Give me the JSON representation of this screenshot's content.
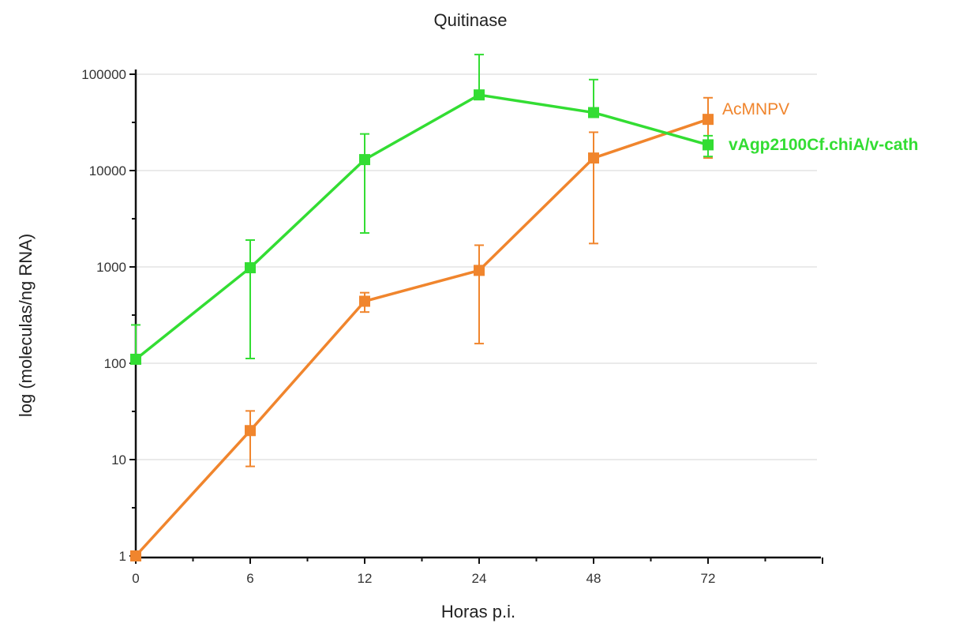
{
  "chart_data": {
    "type": "line",
    "title": "Quitinase",
    "xlabel": "Horas p.i.",
    "ylabel": "log (moleculas/ng RNA)",
    "y_scale": "log",
    "ylim": [
      1,
      100000
    ],
    "x": [
      "0",
      "6",
      "12",
      "24",
      "48",
      "72"
    ],
    "y_ticks": [
      "1",
      "10",
      "100",
      "1000",
      "10000",
      "100000"
    ],
    "grid": true,
    "legend": "right",
    "series": [
      {
        "name": "AcMNPV",
        "color": "#F0852D",
        "values": [
          1,
          20,
          440,
          920,
          13500,
          34000
        ],
        "err_low": [
          1,
          8.5,
          340,
          160,
          1750,
          13500
        ],
        "err_high": [
          1,
          32,
          540,
          1680,
          25000,
          57000
        ]
      },
      {
        "name": "vAgp2100Cf.chiA/v-cath",
        "color": "#33DD33",
        "values": [
          110,
          980,
          13000,
          61000,
          40000,
          18500
        ],
        "err_low": [
          100,
          112,
          2250,
          61000,
          40000,
          14000
        ],
        "err_high": [
          250,
          1900,
          24000,
          160000,
          88000,
          23000
        ]
      }
    ]
  }
}
